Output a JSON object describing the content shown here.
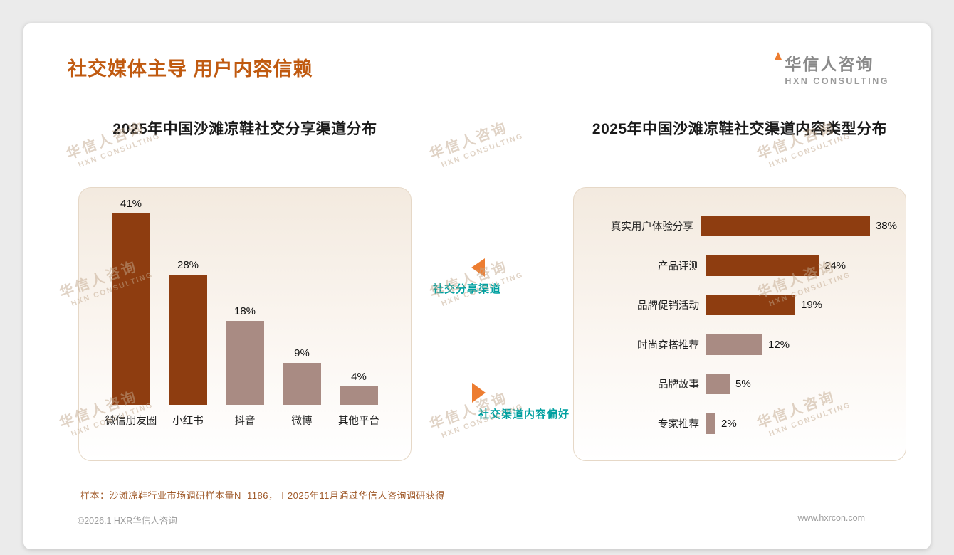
{
  "header": {
    "title": "社交媒体主导 用户内容信赖",
    "logo_cn": "华信人咨询",
    "logo_en": "HXN CONSULTING"
  },
  "watermark": {
    "line1": "华信人咨询",
    "line2": "HXN CONSULTING"
  },
  "annotations": {
    "left_label": "社交分享渠道",
    "right_label": "社交渠道内容偏好"
  },
  "footer": {
    "note": "样本：沙滩凉鞋行业市场调研样本量N=1186，于2025年11月通过华信人咨询调研获得",
    "copyright": "©2026.1 HXR华信人咨询",
    "website": "www.hxrcon.com"
  },
  "colors": {
    "title_accent": "#C05A10",
    "bar_dark": "#8E3D10",
    "bar_light": "#A98B83",
    "teal": "#00A0A0",
    "arrow_orange": "#ED7D31",
    "note_brown": "#A05A2A",
    "watermark": "#C3A98E"
  },
  "chart_data": [
    {
      "type": "bar",
      "title": "2025年中国沙滩凉鞋社交分享渠道分布",
      "categories": [
        "微信朋友圈",
        "小红书",
        "抖音",
        "微博",
        "其他平台"
      ],
      "values": [
        41,
        28,
        18,
        9,
        4
      ],
      "unit": "%",
      "ylim": [
        0,
        45
      ],
      "grid": false,
      "bar_colors": [
        "dark",
        "dark",
        "light",
        "light",
        "light"
      ]
    },
    {
      "type": "bar-horizontal",
      "title": "2025年中国沙滩凉鞋社交渠道内容类型分布",
      "categories": [
        "真实用户体验分享",
        "产品评测",
        "品牌促销活动",
        "时尚穿搭推荐",
        "品牌故事",
        "专家推荐"
      ],
      "values": [
        38,
        24,
        19,
        12,
        5,
        2
      ],
      "unit": "%",
      "xlim": [
        0,
        42
      ],
      "grid": false,
      "bar_colors": [
        "dark",
        "dark",
        "dark",
        "light",
        "light",
        "light"
      ]
    }
  ]
}
